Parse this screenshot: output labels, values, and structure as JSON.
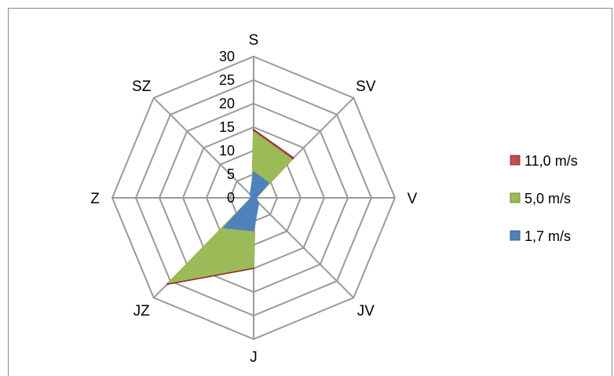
{
  "chart_data": {
    "type": "radar",
    "categories": [
      "S",
      "SV",
      "V",
      "JV",
      "J",
      "JZ",
      "Z",
      "SZ"
    ],
    "rmin": 0,
    "rmax": 30,
    "ticks": [
      "0",
      "5",
      "10",
      "15",
      "20",
      "25",
      "30"
    ],
    "legend_position": "right",
    "series": [
      {
        "name": "11,0 m/s",
        "color": "#c0504d",
        "values": [
          14.5,
          12.0,
          0.5,
          0.5,
          15.0,
          26.0,
          0.5,
          0.5
        ]
      },
      {
        "name": "5,0 m/s",
        "color": "#9bbb59",
        "values": [
          14.0,
          11.5,
          0.5,
          0.5,
          14.7,
          25.5,
          0.5,
          0.5
        ]
      },
      {
        "name": "1,7 m/s",
        "color": "#4f81bd",
        "values": [
          5.5,
          4.5,
          0.5,
          1.5,
          7.0,
          9.0,
          0.5,
          1.0
        ]
      }
    ]
  }
}
